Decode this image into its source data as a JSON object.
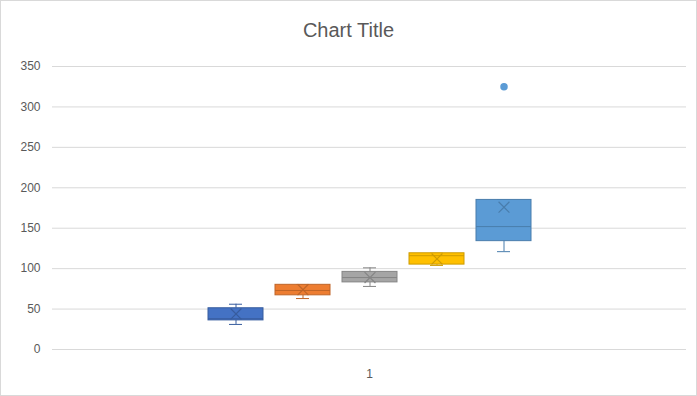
{
  "chart_data": {
    "type": "box",
    "title": "Chart Title",
    "categories": [
      "1"
    ],
    "marker": "x",
    "series": [
      {
        "color": "#4472c4",
        "values": [
          {
            "min": 31,
            "q1": 36,
            "median": 38,
            "q3": 51,
            "max": 56,
            "mean": 44,
            "outliers": []
          }
        ]
      },
      {
        "color": "#ed7d31",
        "values": [
          {
            "min": 63,
            "q1": 67,
            "median": 73,
            "q3": 80,
            "max": 80,
            "mean": 74,
            "outliers": []
          }
        ]
      },
      {
        "color": "#a5a5a5",
        "values": [
          {
            "min": 78,
            "q1": 83,
            "median": 89,
            "q3": 96,
            "max": 101,
            "mean": 89,
            "outliers": []
          }
        ]
      },
      {
        "color": "#ffc000",
        "values": [
          {
            "min": 104,
            "q1": 105,
            "median": 116,
            "q3": 119,
            "max": 119,
            "mean": 112,
            "outliers": []
          }
        ]
      },
      {
        "color": "#5b9bd5",
        "values": [
          {
            "min": 121,
            "q1": 134,
            "median": 152,
            "q3": 185,
            "max": 185,
            "mean": 176,
            "outliers": [
              325
            ]
          }
        ]
      }
    ],
    "ylim": [
      0,
      350
    ],
    "yticks": [
      0,
      50,
      100,
      150,
      200,
      250,
      300,
      350
    ],
    "grid": true
  }
}
